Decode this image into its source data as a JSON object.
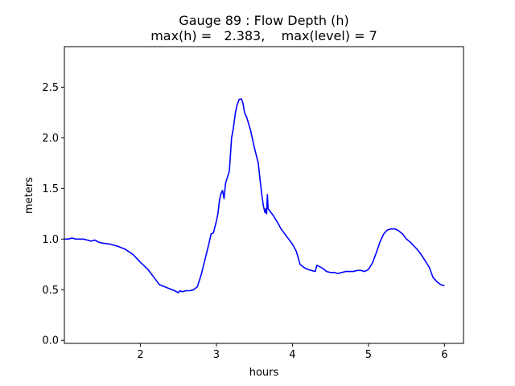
{
  "chart_data": {
    "type": "line",
    "title_lines": [
      "Gauge 89 : Flow Depth (h)",
      "max(h) =   2.383,    max(level) = 7"
    ],
    "xlabel": "hours",
    "ylabel": "meters",
    "xlim": [
      1.0,
      6.25
    ],
    "ylim": [
      -0.03,
      2.9
    ],
    "x_ticks": [
      2,
      3,
      4,
      5,
      6
    ],
    "y_ticks": [
      0.0,
      0.5,
      1.0,
      1.5,
      2.0,
      2.5
    ],
    "x_tick_labels": [
      "2",
      "3",
      "4",
      "5",
      "6"
    ],
    "y_tick_labels": [
      "0.0",
      "0.5",
      "1.0",
      "1.5",
      "2.0",
      "2.5"
    ],
    "grid": false,
    "series": [
      {
        "color": "#0000ff",
        "x": [
          1.0,
          1.05,
          1.1,
          1.15,
          1.2,
          1.25,
          1.3,
          1.35,
          1.4,
          1.45,
          1.5,
          1.6,
          1.7,
          1.8,
          1.9,
          2.0,
          2.1,
          2.2,
          2.25,
          2.35,
          2.45,
          2.5,
          2.52,
          2.55,
          2.6,
          2.65,
          2.7,
          2.75,
          2.8,
          2.85,
          2.9,
          2.93,
          2.96,
          2.98,
          3.0,
          3.02,
          3.04,
          3.06,
          3.08,
          3.1,
          3.12,
          3.14,
          3.17,
          3.2,
          3.22,
          3.25,
          3.27,
          3.3,
          3.33,
          3.35,
          3.37,
          3.4,
          3.45,
          3.5,
          3.55,
          3.58,
          3.6,
          3.62,
          3.64,
          3.65,
          3.66,
          3.67,
          3.68,
          3.69,
          3.7,
          3.75,
          3.8,
          3.85,
          3.9,
          3.95,
          4.0,
          4.05,
          4.1,
          4.15,
          4.2,
          4.25,
          4.3,
          4.32,
          4.35,
          4.4,
          4.45,
          4.5,
          4.55,
          4.6,
          4.65,
          4.7,
          4.75,
          4.8,
          4.85,
          4.9,
          4.95,
          5.0,
          5.05,
          5.1,
          5.15,
          5.2,
          5.25,
          5.3,
          5.35,
          5.4,
          5.45,
          5.5,
          5.55,
          5.6,
          5.65,
          5.7,
          5.75,
          5.8,
          5.85,
          5.9,
          5.95,
          6.0
        ],
        "y": [
          1.0,
          1.0,
          1.01,
          1.0,
          1.0,
          1.0,
          0.99,
          0.98,
          0.99,
          0.97,
          0.96,
          0.95,
          0.93,
          0.9,
          0.85,
          0.77,
          0.7,
          0.6,
          0.55,
          0.52,
          0.49,
          0.47,
          0.49,
          0.48,
          0.49,
          0.49,
          0.5,
          0.53,
          0.65,
          0.8,
          0.95,
          1.05,
          1.06,
          1.12,
          1.18,
          1.25,
          1.38,
          1.45,
          1.48,
          1.4,
          1.55,
          1.6,
          1.67,
          2.0,
          2.08,
          2.25,
          2.32,
          2.38,
          2.383,
          2.34,
          2.25,
          2.2,
          2.07,
          1.9,
          1.75,
          1.55,
          1.42,
          1.32,
          1.26,
          1.3,
          1.25,
          1.44,
          1.3,
          1.29,
          1.28,
          1.23,
          1.17,
          1.1,
          1.05,
          1.0,
          0.95,
          0.88,
          0.75,
          0.72,
          0.7,
          0.69,
          0.68,
          0.74,
          0.73,
          0.71,
          0.68,
          0.67,
          0.67,
          0.66,
          0.67,
          0.68,
          0.68,
          0.68,
          0.69,
          0.69,
          0.68,
          0.7,
          0.76,
          0.86,
          0.97,
          1.05,
          1.09,
          1.1,
          1.1,
          1.08,
          1.05,
          1.0,
          0.97,
          0.93,
          0.89,
          0.84,
          0.78,
          0.72,
          0.62,
          0.58,
          0.55,
          0.54
        ]
      }
    ]
  }
}
